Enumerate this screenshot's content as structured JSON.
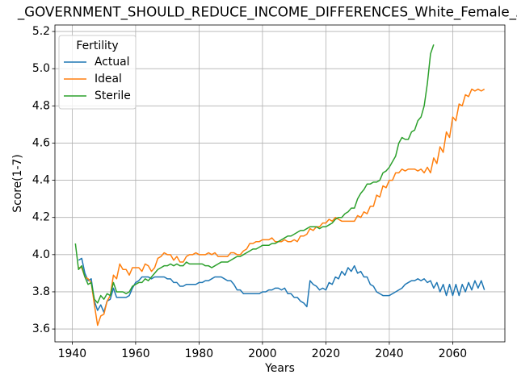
{
  "chart_data": {
    "type": "line",
    "title": "_GOVERNMENT_SHOULD_REDUCE_INCOME_DIFFERENCES_White_Female_Abo",
    "x_label": "Years",
    "y_label": "Score(1-7)",
    "legend_title": "Fertility",
    "legend": "upper left",
    "grid": true,
    "x": [
      1941,
      1942,
      1943,
      1944,
      1945,
      1946,
      1947,
      1948,
      1949,
      1950,
      1951,
      1952,
      1953,
      1954,
      1955,
      1956,
      1957,
      1958,
      1959,
      1960,
      1961,
      1962,
      1963,
      1964,
      1965,
      1966,
      1967,
      1968,
      1969,
      1970,
      1971,
      1972,
      1973,
      1974,
      1975,
      1976,
      1977,
      1978,
      1979,
      1980,
      1981,
      1982,
      1983,
      1984,
      1985,
      1986,
      1987,
      1988,
      1989,
      1990,
      1991,
      1992,
      1993,
      1994,
      1995,
      1996,
      1997,
      1998,
      1999,
      2000,
      2001,
      2002,
      2003,
      2004,
      2005,
      2006,
      2007,
      2008,
      2009,
      2010,
      2011,
      2012,
      2013,
      2014,
      2015,
      2016,
      2017,
      2018,
      2019,
      2020,
      2021,
      2022,
      2023,
      2024,
      2025,
      2026,
      2027,
      2028,
      2029,
      2030,
      2031,
      2032,
      2033,
      2034,
      2035,
      2036,
      2037,
      2038,
      2039,
      2040,
      2041,
      2042,
      2043,
      2044,
      2045,
      2046,
      2047,
      2048,
      2049,
      2050,
      2051,
      2052,
      2053,
      2054,
      2055,
      2056,
      2057,
      2058,
      2059,
      2060,
      2061,
      2062,
      2063,
      2064,
      2065,
      2066,
      2067,
      2068,
      2069,
      2070
    ],
    "series": [
      {
        "name": "Actual",
        "color": "#1f77b4",
        "values": [
          null,
          3.97,
          3.98,
          3.9,
          3.86,
          3.87,
          3.75,
          3.7,
          3.73,
          3.69,
          3.75,
          3.76,
          3.82,
          3.77,
          3.77,
          3.77,
          3.77,
          3.78,
          3.82,
          3.85,
          3.86,
          3.88,
          3.88,
          3.88,
          3.87,
          3.88,
          3.88,
          3.88,
          3.88,
          3.87,
          3.87,
          3.85,
          3.85,
          3.83,
          3.83,
          3.84,
          3.84,
          3.84,
          3.84,
          3.85,
          3.85,
          3.86,
          3.86,
          3.87,
          3.88,
          3.88,
          3.88,
          3.87,
          3.86,
          3.86,
          3.84,
          3.81,
          3.81,
          3.79,
          3.79,
          3.79,
          3.79,
          3.79,
          3.79,
          3.8,
          3.8,
          3.81,
          3.81,
          3.82,
          3.82,
          3.81,
          3.82,
          3.79,
          3.79,
          3.77,
          3.77,
          3.75,
          3.74,
          3.72,
          3.86,
          3.84,
          3.83,
          3.81,
          3.82,
          3.81,
          3.85,
          3.84,
          3.88,
          3.87,
          3.91,
          3.89,
          3.93,
          3.91,
          3.94,
          3.9,
          3.91,
          3.88,
          3.88,
          3.84,
          3.83,
          3.8,
          3.79,
          3.78,
          3.78,
          3.78,
          3.79,
          3.8,
          3.81,
          3.82,
          3.84,
          3.85,
          3.86,
          3.86,
          3.87,
          3.86,
          3.87,
          3.85,
          3.86,
          3.82,
          3.85,
          3.8,
          3.84,
          3.78,
          3.84,
          3.78,
          3.84,
          3.78,
          3.84,
          3.8,
          3.85,
          3.81,
          3.86,
          3.82,
          3.86,
          3.81
        ]
      },
      {
        "name": "Ideal",
        "color": "#ff7f0e",
        "values": [
          null,
          3.93,
          3.93,
          3.88,
          3.87,
          3.85,
          3.73,
          3.62,
          3.67,
          3.68,
          3.75,
          3.78,
          3.89,
          3.87,
          3.95,
          3.92,
          3.92,
          3.89,
          3.93,
          3.93,
          3.93,
          3.91,
          3.95,
          3.94,
          3.91,
          3.93,
          3.98,
          3.99,
          4.01,
          4.0,
          4.0,
          3.97,
          3.99,
          3.96,
          3.96,
          3.99,
          4.0,
          4.0,
          4.01,
          4.0,
          4.0,
          4.0,
          4.01,
          4.0,
          4.01,
          3.99,
          3.99,
          3.99,
          3.99,
          4.01,
          4.01,
          4.0,
          4.0,
          4.02,
          4.03,
          4.06,
          4.06,
          4.07,
          4.07,
          4.08,
          4.08,
          4.08,
          4.09,
          4.07,
          4.07,
          4.07,
          4.08,
          4.07,
          4.07,
          4.08,
          4.07,
          4.1,
          4.1,
          4.11,
          4.14,
          4.13,
          4.15,
          4.15,
          4.17,
          4.17,
          4.19,
          4.18,
          4.2,
          4.19,
          4.18,
          4.18,
          4.18,
          4.18,
          4.18,
          4.21,
          4.2,
          4.23,
          4.22,
          4.26,
          4.26,
          4.32,
          4.31,
          4.37,
          4.36,
          4.4,
          4.4,
          4.44,
          4.44,
          4.46,
          4.45,
          4.46,
          4.46,
          4.46,
          4.45,
          4.46,
          4.44,
          4.47,
          4.44,
          4.52,
          4.49,
          4.58,
          4.55,
          4.66,
          4.63,
          4.74,
          4.72,
          4.81,
          4.8,
          4.86,
          4.85,
          4.89,
          4.88,
          4.89,
          4.88,
          4.89
        ]
      },
      {
        "name": "Sterile",
        "color": "#2ca02c",
        "values": [
          4.06,
          3.92,
          3.94,
          3.88,
          3.84,
          3.85,
          3.76,
          3.74,
          3.78,
          3.76,
          3.79,
          3.78,
          3.85,
          3.8,
          3.8,
          3.8,
          3.79,
          3.8,
          3.83,
          3.84,
          3.85,
          3.85,
          3.87,
          3.86,
          3.88,
          3.9,
          3.92,
          3.93,
          3.94,
          3.94,
          3.95,
          3.94,
          3.95,
          3.94,
          3.94,
          3.96,
          3.95,
          3.95,
          3.95,
          3.95,
          3.95,
          3.94,
          3.94,
          3.93,
          3.94,
          3.95,
          3.96,
          3.96,
          3.96,
          3.97,
          3.98,
          3.99,
          3.99,
          4.0,
          4.01,
          4.02,
          4.03,
          4.03,
          4.04,
          4.05,
          4.05,
          4.05,
          4.06,
          4.06,
          4.07,
          4.08,
          4.09,
          4.1,
          4.1,
          4.11,
          4.12,
          4.13,
          4.13,
          4.14,
          4.15,
          4.15,
          4.15,
          4.14,
          4.15,
          4.15,
          4.16,
          4.17,
          4.19,
          4.2,
          4.2,
          4.22,
          4.23,
          4.25,
          4.25,
          4.3,
          4.33,
          4.35,
          4.38,
          4.38,
          4.39,
          4.39,
          4.4,
          4.44,
          4.45,
          4.47,
          4.5,
          4.53,
          4.6,
          4.63,
          4.62,
          4.62,
          4.66,
          4.67,
          4.72,
          4.74,
          4.8,
          4.92,
          5.08,
          5.13,
          null,
          null,
          null,
          null,
          null,
          null,
          null,
          null,
          null,
          null,
          null,
          null,
          null,
          null,
          null,
          null
        ]
      }
    ],
    "xlim": [
      1934.55,
      2076.45
    ],
    "xticks": [
      1940,
      1960,
      1980,
      2000,
      2020,
      2040,
      2060
    ],
    "ylim": [
      3.531,
      5.235
    ],
    "yticks": [
      3.6,
      3.8,
      {
        "value": 4,
        "label": "4.0"
      },
      4.2,
      4.4,
      4.6,
      4.8,
      {
        "value": 5,
        "label": "5.0"
      },
      5.2
    ]
  }
}
